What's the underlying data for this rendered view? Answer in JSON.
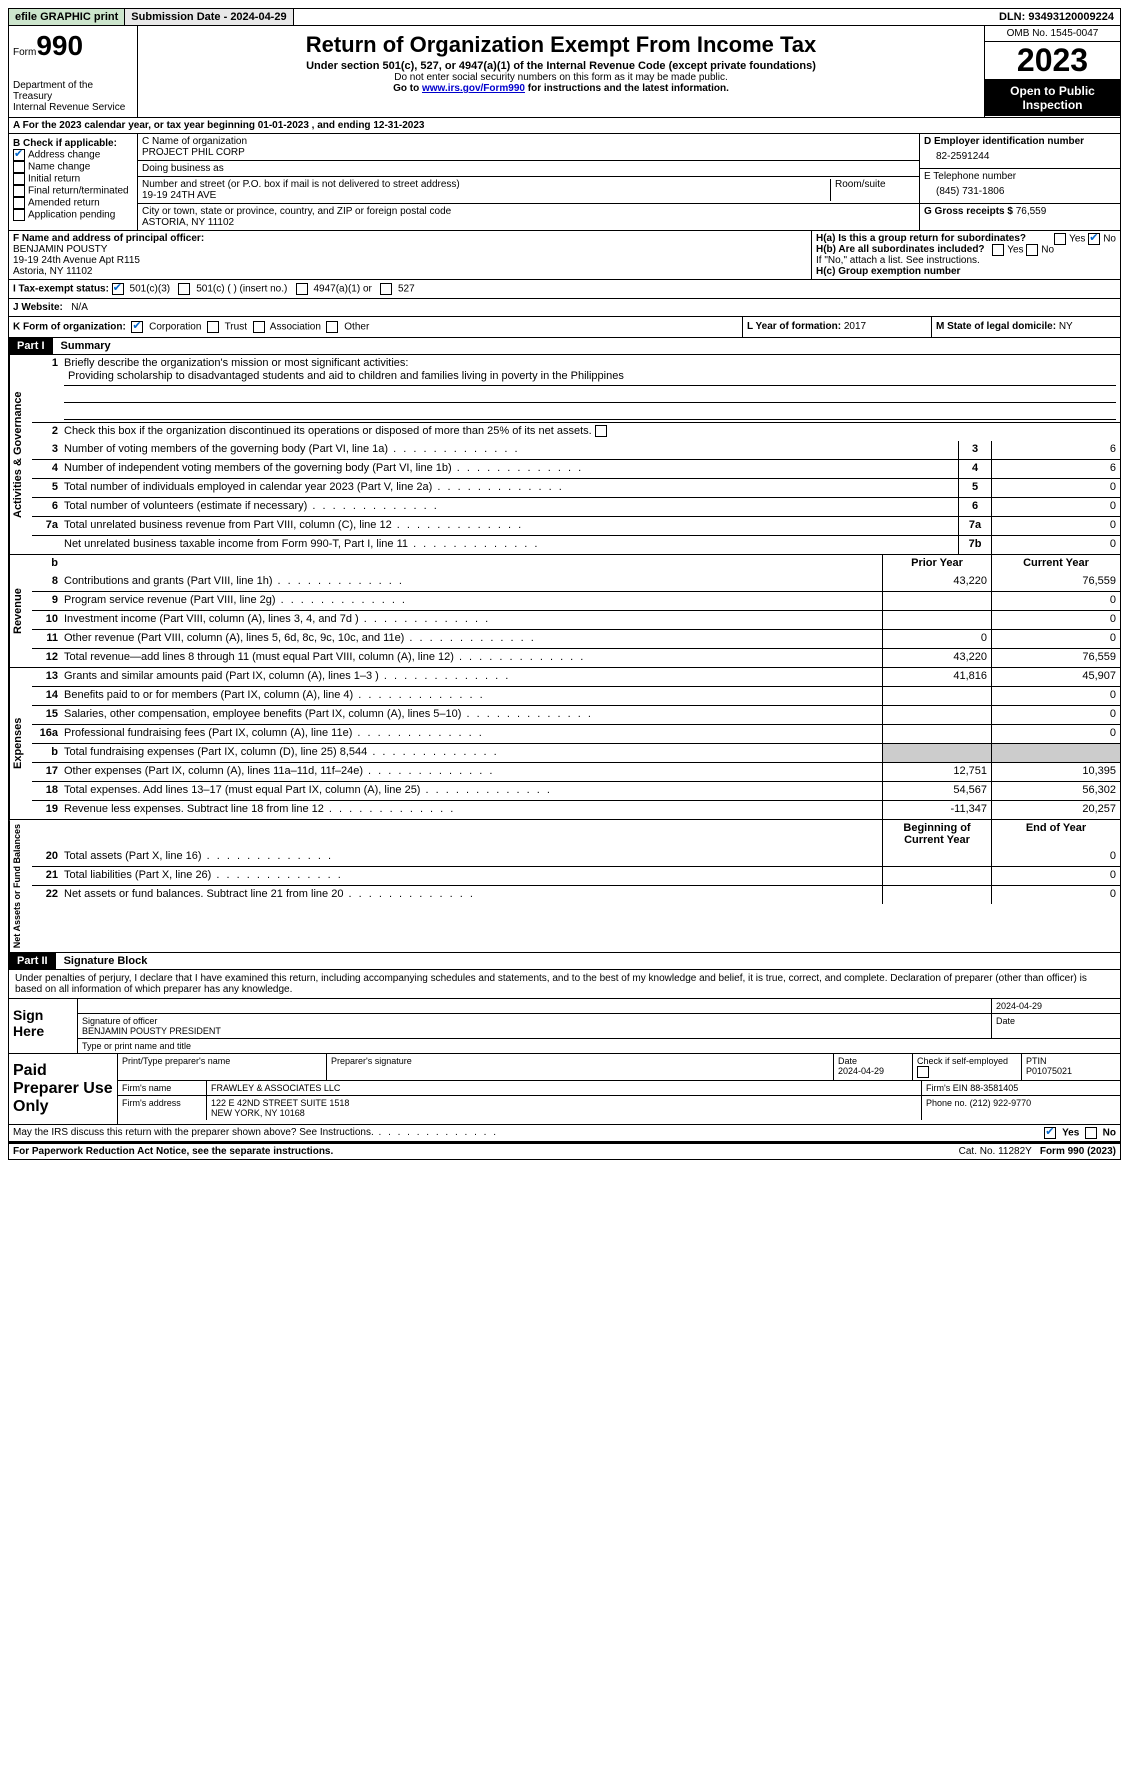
{
  "topbar": {
    "efile": "efile GRAPHIC print",
    "submission_label": "Submission Date - 2024-04-29",
    "dln": "DLN: 93493120009224"
  },
  "header": {
    "form_prefix": "Form",
    "form_no": "990",
    "title": "Return of Organization Exempt From Income Tax",
    "subtitle": "Under section 501(c), 527, or 4947(a)(1) of the Internal Revenue Code (except private foundations)",
    "line2": "Do not enter social security numbers on this form as it may be made public.",
    "line3_pre": "Go to ",
    "line3_link": "www.irs.gov/Form990",
    "line3_post": " for instructions and the latest information.",
    "dept": "Department of the Treasury",
    "irs": "Internal Revenue Service",
    "omb": "OMB No. 1545-0047",
    "year": "2023",
    "open": "Open to Public Inspection"
  },
  "lineA": "A  For the 2023 calendar year, or tax year beginning 01-01-2023   , and ending 12-31-2023",
  "boxB": {
    "label": "B Check if applicable:",
    "items": [
      "Address change",
      "Name change",
      "Initial return",
      "Final return/terminated",
      "Amended return",
      "Application pending"
    ],
    "checked": [
      true,
      false,
      false,
      false,
      false,
      false
    ]
  },
  "boxC": {
    "name_label": "C Name of organization",
    "name": "PROJECT PHIL CORP",
    "dba_label": "Doing business as",
    "dba": "",
    "street_label": "Number and street (or P.O. box if mail is not delivered to street address)",
    "street": "19-19 24TH AVE",
    "room_label": "Room/suite",
    "city_label": "City or town, state or province, country, and ZIP or foreign postal code",
    "city": "ASTORIA, NY  11102"
  },
  "boxD": {
    "label": "D Employer identification number",
    "value": "82-2591244"
  },
  "boxE": {
    "label": "E Telephone number",
    "value": "(845) 731-1806"
  },
  "boxG": {
    "label": "G Gross receipts $",
    "value": "76,559"
  },
  "boxF": {
    "label": "F  Name and address of principal officer:",
    "name": "BENJAMIN POUSTY",
    "addr1": "19-19 24th Avenue Apt R115",
    "addr2": "Astoria, NY  11102"
  },
  "boxH": {
    "ha_label": "H(a)  Is this a group return for subordinates?",
    "ha_yes": "Yes",
    "ha_no": "No",
    "hb_label": "H(b)  Are all subordinates included?",
    "hb_note": "If \"No,\" attach a list. See instructions.",
    "hc_label": "H(c)  Group exemption number"
  },
  "taxExempt": {
    "label": "I    Tax-exempt status:",
    "o1": "501(c)(3)",
    "o2": "501(c) (  ) (insert no.)",
    "o3": "4947(a)(1) or",
    "o4": "527"
  },
  "website": {
    "label": "J    Website:",
    "value": "N/A"
  },
  "formOrg": {
    "label": "K Form of organization:",
    "o1": "Corporation",
    "o2": "Trust",
    "o3": "Association",
    "o4": "Other"
  },
  "boxL": {
    "label": "L Year of formation:",
    "value": "2017"
  },
  "boxM": {
    "label": "M State of legal domicile:",
    "value": "NY"
  },
  "part1": {
    "label": "Part I",
    "title": "Summary"
  },
  "summary": {
    "q1_label": "Briefly describe the organization's mission or most significant activities:",
    "q1_text": "Providing scholarship to disadvantaged students and aid to children and families living in poverty in the Philippines",
    "q2": "Check this box      if the organization discontinued its operations or disposed of more than 25% of its net assets.",
    "rows_gov": [
      {
        "n": "3",
        "d": "Number of voting members of the governing body (Part VI, line 1a)",
        "box": "3",
        "v": "6"
      },
      {
        "n": "4",
        "d": "Number of independent voting members of the governing body (Part VI, line 1b)",
        "box": "4",
        "v": "6"
      },
      {
        "n": "5",
        "d": "Total number of individuals employed in calendar year 2023 (Part V, line 2a)",
        "box": "5",
        "v": "0"
      },
      {
        "n": "6",
        "d": "Total number of volunteers (estimate if necessary)",
        "box": "6",
        "v": "0"
      },
      {
        "n": "7a",
        "d": "Total unrelated business revenue from Part VIII, column (C), line 12",
        "box": "7a",
        "v": "0"
      },
      {
        "n": "",
        "d": "Net unrelated business taxable income from Form 990-T, Part I, line 11",
        "box": "7b",
        "v": "0"
      }
    ],
    "prior_label": "Prior Year",
    "current_label": "Current Year",
    "rows_rev": [
      {
        "n": "8",
        "d": "Contributions and grants (Part VIII, line 1h)",
        "p": "43,220",
        "c": "76,559"
      },
      {
        "n": "9",
        "d": "Program service revenue (Part VIII, line 2g)",
        "p": "",
        "c": "0"
      },
      {
        "n": "10",
        "d": "Investment income (Part VIII, column (A), lines 3, 4, and 7d )",
        "p": "",
        "c": "0"
      },
      {
        "n": "11",
        "d": "Other revenue (Part VIII, column (A), lines 5, 6d, 8c, 9c, 10c, and 11e)",
        "p": "0",
        "c": "0"
      },
      {
        "n": "12",
        "d": "Total revenue—add lines 8 through 11 (must equal Part VIII, column (A), line 12)",
        "p": "43,220",
        "c": "76,559"
      }
    ],
    "rows_exp": [
      {
        "n": "13",
        "d": "Grants and similar amounts paid (Part IX, column (A), lines 1–3 )",
        "p": "41,816",
        "c": "45,907"
      },
      {
        "n": "14",
        "d": "Benefits paid to or for members (Part IX, column (A), line 4)",
        "p": "",
        "c": "0"
      },
      {
        "n": "15",
        "d": "Salaries, other compensation, employee benefits (Part IX, column (A), lines 5–10)",
        "p": "",
        "c": "0"
      },
      {
        "n": "16a",
        "d": "Professional fundraising fees (Part IX, column (A), line 11e)",
        "p": "",
        "c": "0"
      },
      {
        "n": "b",
        "d": "Total fundraising expenses (Part IX, column (D), line 25) 8,544",
        "p": "shaded",
        "c": "shaded"
      },
      {
        "n": "17",
        "d": "Other expenses (Part IX, column (A), lines 11a–11d, 11f–24e)",
        "p": "12,751",
        "c": "10,395"
      },
      {
        "n": "18",
        "d": "Total expenses. Add lines 13–17 (must equal Part IX, column (A), line 25)",
        "p": "54,567",
        "c": "56,302"
      },
      {
        "n": "19",
        "d": "Revenue less expenses. Subtract line 18 from line 12",
        "p": "-11,347",
        "c": "20,257"
      }
    ],
    "begin_label": "Beginning of Current Year",
    "end_label": "End of Year",
    "rows_net": [
      {
        "n": "20",
        "d": "Total assets (Part X, line 16)",
        "p": "",
        "c": "0"
      },
      {
        "n": "21",
        "d": "Total liabilities (Part X, line 26)",
        "p": "",
        "c": "0"
      },
      {
        "n": "22",
        "d": "Net assets or fund balances. Subtract line 21 from line 20",
        "p": "",
        "c": "0"
      }
    ],
    "vlabels": {
      "gov": "Activities & Governance",
      "rev": "Revenue",
      "exp": "Expenses",
      "net": "Net Assets or Fund Balances"
    }
  },
  "part2": {
    "label": "Part II",
    "title": "Signature Block"
  },
  "perjury": "Under penalties of perjury, I declare that I have examined this return, including accompanying schedules and statements, and to the best of my knowledge and belief, it is true, correct, and complete. Declaration of preparer (other than officer) is based on all information of which preparer has any knowledge.",
  "sign": {
    "label": "Sign Here",
    "date": "2024-04-29",
    "sig_label": "Signature of officer",
    "officer": "BENJAMIN POUSTY PRESIDENT",
    "type_label": "Type or print name and title",
    "date_label": "Date"
  },
  "preparer": {
    "label": "Paid Preparer Use Only",
    "print_label": "Print/Type preparer's name",
    "sig_label": "Preparer's signature",
    "date_label": "Date",
    "date": "2024-04-29",
    "check_label": "Check       if self-employed",
    "ptin_label": "PTIN",
    "ptin": "P01075021",
    "firm_name_label": "Firm's name",
    "firm_name": "FRAWLEY & ASSOCIATES LLC",
    "firm_ein_label": "Firm's EIN",
    "firm_ein": "88-3581405",
    "firm_addr_label": "Firm's address",
    "firm_addr1": "122 E 42ND STREET SUITE 1518",
    "firm_addr2": "NEW YORK, NY  10168",
    "phone_label": "Phone no.",
    "phone": "(212) 922-9770"
  },
  "discuss": {
    "text": "May the IRS discuss this return with the preparer shown above? See Instructions.",
    "yes": "Yes",
    "no": "No"
  },
  "footer": {
    "left": "For Paperwork Reduction Act Notice, see the separate instructions.",
    "cat": "Cat. No. 11282Y",
    "form": "Form 990 (2023)"
  }
}
